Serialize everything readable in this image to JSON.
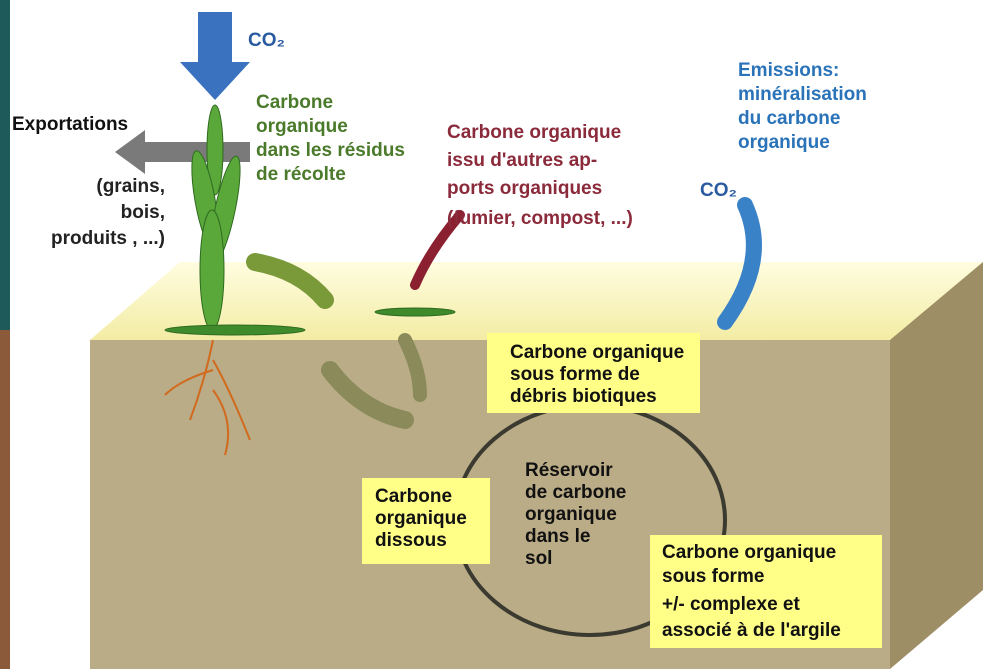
{
  "co2_top": "CO₂",
  "exportations": {
    "title": "Exportations",
    "detail": [
      "(grains,",
      "bois,",
      "produits , ...)"
    ]
  },
  "residues": [
    "Carbone",
    "organique",
    "dans les résidus",
    "de récolte"
  ],
  "other_inputs": {
    "title": [
      "Carbone organique",
      "issu d'autres ap-",
      "ports organiques"
    ],
    "detail": "(fumier, compost, ...)"
  },
  "emissions": {
    "title": [
      "Emissions:",
      "minéralisation",
      "du carbone",
      "organique"
    ],
    "co2": "CO₂"
  },
  "boxes": [
    [
      "Carbone organique",
      "sous forme de",
      "débris biotiques"
    ],
    [
      "Carbone",
      "organique",
      "dissous"
    ],
    [
      "Carbone organique",
      "sous forme",
      "+/- complexe et",
      "associé à de l'argile"
    ]
  ],
  "reservoir": [
    "Réservoir",
    "de carbone",
    "organique",
    "dans le",
    "sol"
  ]
}
